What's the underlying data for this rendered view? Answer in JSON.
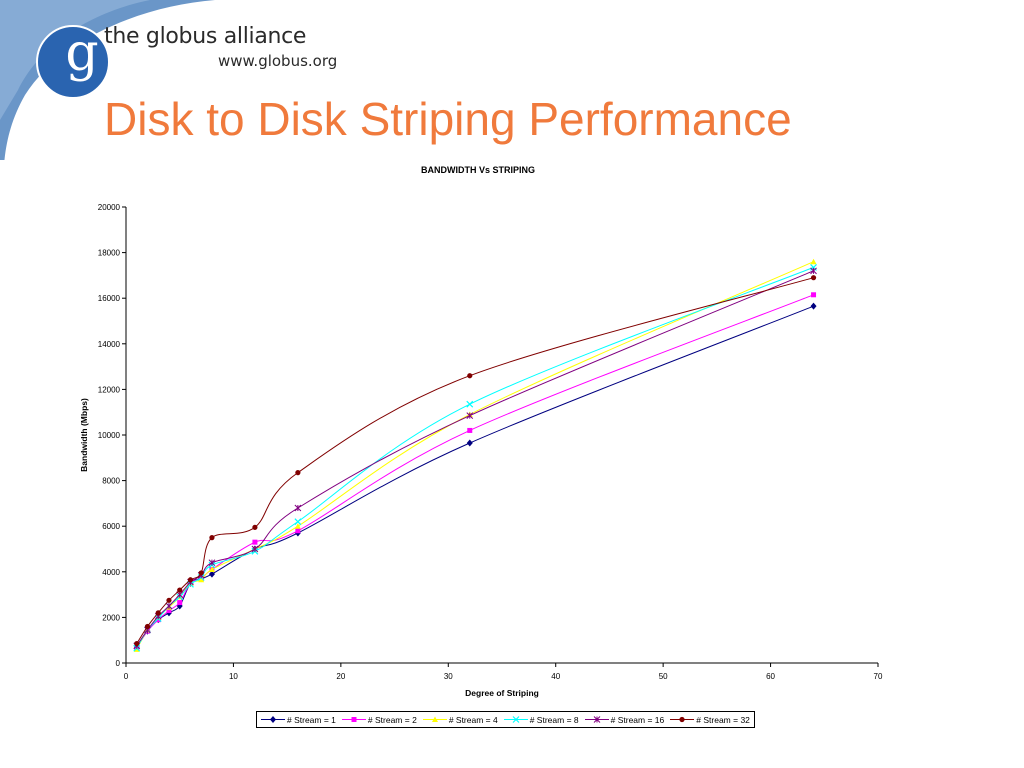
{
  "header": {
    "brand_name": "the globus alliance",
    "brand_url": "www.globus.org",
    "logo_letter": "g"
  },
  "slide": {
    "title": "Disk to Disk Striping Performance"
  },
  "colors": {
    "title": "#f07a3c",
    "logo_circle": "#2a64b0",
    "swoosh": "#6a96c8"
  },
  "chart_data": {
    "type": "line",
    "title": "BANDWIDTH Vs STRIPING",
    "xlabel": "Degree of Striping",
    "ylabel": "Bandwidth (Mbps)",
    "xlim": [
      0,
      70
    ],
    "ylim": [
      0,
      20000
    ],
    "xticks": [
      0,
      10,
      20,
      30,
      40,
      50,
      60,
      70
    ],
    "yticks": [
      0,
      2000,
      4000,
      6000,
      8000,
      10000,
      12000,
      14000,
      16000,
      18000,
      20000
    ],
    "grid": false,
    "legend_position": "bottom",
    "x": [
      1,
      2,
      3,
      4,
      5,
      6,
      7,
      8,
      12,
      16,
      32,
      64
    ],
    "series": [
      {
        "name": "# Stream = 1",
        "color": "#000080",
        "marker": "diamond",
        "values": [
          700,
          1400,
          1900,
          2200,
          2500,
          3500,
          3700,
          3900,
          5000,
          5700,
          9650,
          15650
        ]
      },
      {
        "name": "# Stream = 2",
        "color": "#ff00ff",
        "marker": "square",
        "values": [
          650,
          1400,
          1900,
          2300,
          2650,
          3500,
          3700,
          4100,
          5300,
          5800,
          10200,
          16150
        ]
      },
      {
        "name": "# Stream = 4",
        "color": "#ffff00",
        "marker": "triangle",
        "values": [
          600,
          1450,
          2000,
          2450,
          2900,
          3500,
          3650,
          4100,
          5000,
          6000,
          10900,
          17600
        ]
      },
      {
        "name": "# Stream = 8",
        "color": "#00ffff",
        "marker": "x",
        "values": [
          650,
          1450,
          1950,
          2500,
          2900,
          3450,
          3750,
          4300,
          4900,
          6200,
          11350,
          17350
        ]
      },
      {
        "name": "# Stream = 16",
        "color": "#800080",
        "marker": "star",
        "values": [
          750,
          1450,
          2050,
          2500,
          3000,
          3550,
          3850,
          4400,
          5000,
          6800,
          10850,
          17200
        ]
      },
      {
        "name": "# Stream = 32",
        "color": "#800000",
        "marker": "circle",
        "values": [
          850,
          1600,
          2200,
          2750,
          3200,
          3650,
          3950,
          5500,
          5950,
          8350,
          12600,
          16900
        ]
      }
    ]
  }
}
